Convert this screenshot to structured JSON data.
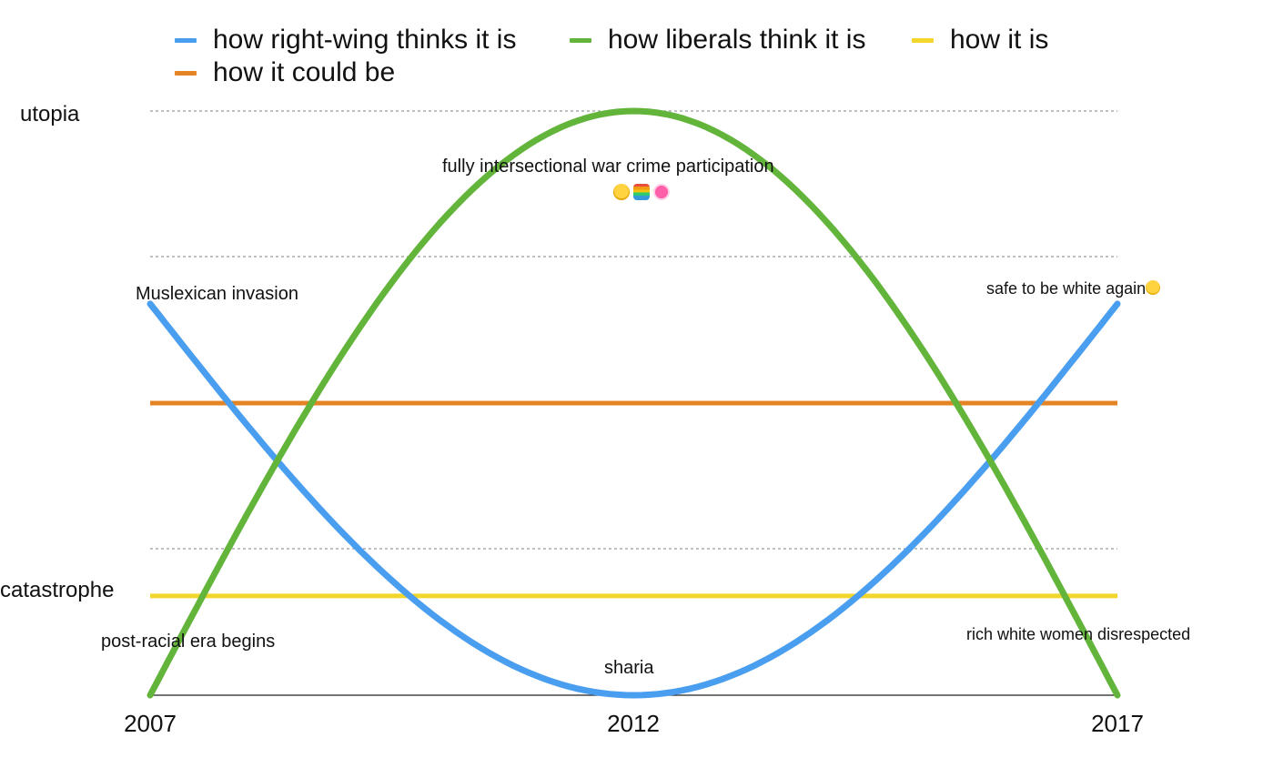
{
  "chart_data": {
    "type": "line",
    "title": "",
    "xlabel": "",
    "ylabel": "",
    "x": [
      2007,
      2012,
      2017
    ],
    "xlim": [
      2007,
      2017
    ],
    "ylim": [
      0,
      1
    ],
    "grid": "dotted horizontal",
    "legend_position": "top",
    "y_tick_labels": [
      {
        "label": "utopia",
        "value": 1.0
      },
      {
        "label": "catastrophe",
        "value": 0.17
      }
    ],
    "series": [
      {
        "name": "how right-wing thinks it is",
        "color": "#4a9ef0",
        "shape": "cosine",
        "points": [
          [
            2007,
            0.67
          ],
          [
            2012,
            0.0
          ],
          [
            2017,
            0.67
          ]
        ]
      },
      {
        "name": "how liberals think it is",
        "color": "#62b53a",
        "shape": "sine",
        "points": [
          [
            2007,
            0.0
          ],
          [
            2012,
            1.0
          ],
          [
            2017,
            0.0
          ]
        ]
      },
      {
        "name": "how it is",
        "color": "#f2d62b",
        "shape": "flat",
        "points": [
          [
            2007,
            0.17
          ],
          [
            2017,
            0.17
          ]
        ]
      },
      {
        "name": "how it could be",
        "color": "#e58424",
        "shape": "flat",
        "points": [
          [
            2007,
            0.5
          ],
          [
            2017,
            0.5
          ]
        ]
      }
    ],
    "annotations": [
      {
        "text": "fully intersectional war crime participation",
        "x": 2012,
        "y": 0.9
      },
      {
        "text": "Muslexican invasion",
        "x": 2008,
        "y": 0.69
      },
      {
        "text": "safe to be white again",
        "x": 2016,
        "y": 0.7
      },
      {
        "text": "post-racial era begins",
        "x": 2008,
        "y": 0.09
      },
      {
        "text": "sharia",
        "x": 2012,
        "y": 0.05
      },
      {
        "text": "rich white women disrespected",
        "x": 2016,
        "y": 0.11
      }
    ]
  }
}
